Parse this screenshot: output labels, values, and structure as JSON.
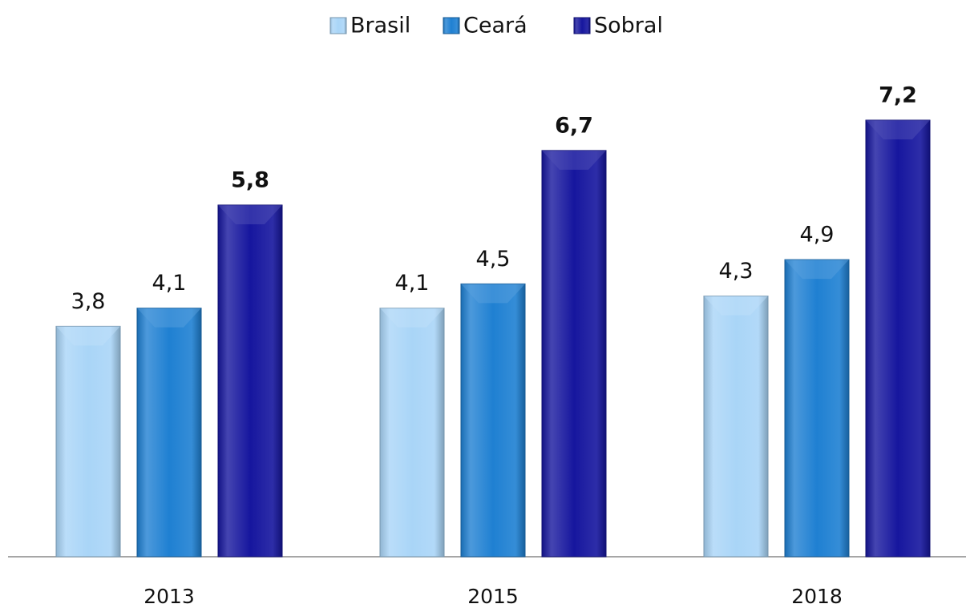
{
  "chart_data": {
    "type": "bar",
    "categories": [
      "2013",
      "2015",
      "2018"
    ],
    "series": [
      {
        "name": "Brasil",
        "color": "#a9d5f7",
        "values": [
          3.8,
          4.1,
          4.3
        ],
        "value_labels": [
          "3,8",
          "4,1",
          "4,3"
        ]
      },
      {
        "name": "Ceará",
        "color": "#1f80d2",
        "values": [
          4.1,
          4.5,
          4.9
        ],
        "value_labels": [
          "4,1",
          "4,5",
          "4,9"
        ]
      },
      {
        "name": "Sobral",
        "color": "#16169e",
        "values": [
          5.8,
          6.7,
          7.2
        ],
        "value_labels": [
          "5,8",
          "6,7",
          "7,2"
        ]
      }
    ],
    "legend": "top"
  }
}
